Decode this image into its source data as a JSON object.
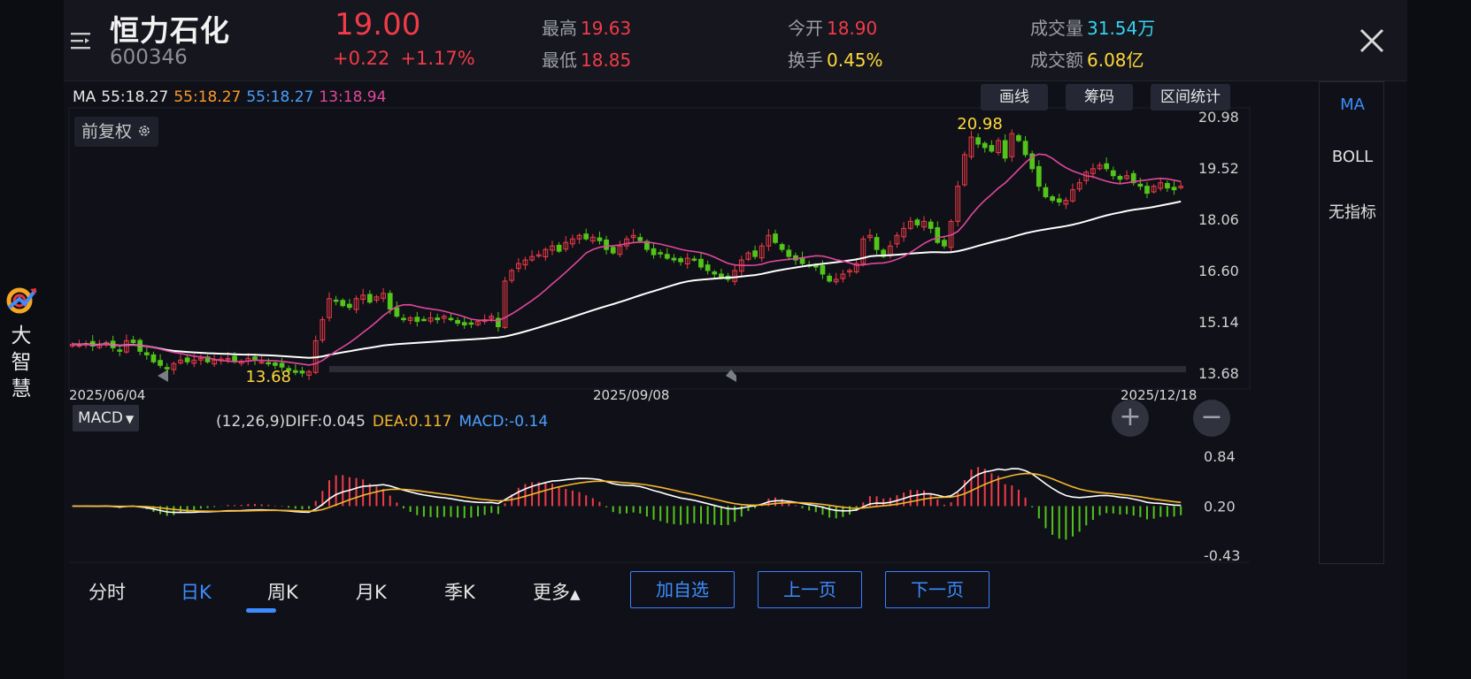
{
  "brand": {
    "text": "大智慧",
    "logo_icon": "dzh-logo-icon"
  },
  "header": {
    "name": "恒力石化",
    "code": "600346",
    "price": "19.00",
    "change": "+0.22",
    "change_pct": "+1.17%",
    "high_label": "最高",
    "high": "19.63",
    "low_label": "最低",
    "low": "18.85",
    "open_label": "今开",
    "open": "18.90",
    "turnover_label": "换手",
    "turnover": "0.45%",
    "volume_label": "成交量",
    "volume": "31.54万",
    "amount_label": "成交额",
    "amount": "6.08亿"
  },
  "ma_legend": {
    "label": "MA",
    "ma1": "55:18.27",
    "ma2": "55:18.27",
    "ma3": "55:18.27",
    "ma4": "13:18.94"
  },
  "tools": {
    "draw": "画线",
    "chips": "筹码",
    "range": "区间统计"
  },
  "fuquan": "前复权",
  "side_indicators": [
    "MA",
    "BOLL",
    "无指标"
  ],
  "macd": {
    "label": "MACD",
    "params": "(12,26,9)",
    "diff": "DIFF:0.045",
    "dea": "DEA:0.117",
    "macd": "MACD:-0.14"
  },
  "zoom": {
    "in": "+",
    "out": "−"
  },
  "tabs": [
    "分时",
    "日K",
    "周K",
    "月K",
    "季K",
    "更多"
  ],
  "actions": {
    "add": "加自选",
    "prev": "上一页",
    "next": "下一页"
  },
  "chart_data": {
    "type": "candlestick",
    "x_labels": [
      "2025/06/04",
      "2025/09/08",
      "2025/12/18"
    ],
    "y_ticks": [
      "20.98",
      "19.52",
      "18.06",
      "16.60",
      "15.14",
      "13.68"
    ],
    "ylim": [
      13.68,
      20.98
    ],
    "max_label": "20.98",
    "min_label": "13.68",
    "macd_ticks": [
      "0.84",
      "0.20",
      "-0.43"
    ],
    "macd_ylim": [
      -0.43,
      0.84
    ],
    "colors": {
      "up": "#f23b48",
      "down": "#52c41a",
      "ma_slow": "#ffffff",
      "ma_fast": "#e0479c",
      "diff": "#ffffff",
      "dea": "#f5b52d"
    },
    "closes": [
      14.5,
      14.48,
      14.52,
      14.45,
      14.5,
      14.55,
      14.4,
      14.3,
      14.6,
      14.55,
      14.3,
      14.2,
      14.0,
      13.9,
      13.8,
      13.95,
      14.05,
      14.0,
      14.05,
      14.1,
      14.0,
      14.05,
      14.08,
      14.1,
      14.0,
      14.02,
      14.1,
      14.05,
      14.0,
      13.95,
      13.9,
      13.85,
      13.75,
      13.7,
      13.68,
      13.72,
      14.6,
      15.2,
      15.8,
      15.75,
      15.6,
      15.55,
      15.8,
      15.9,
      15.7,
      15.85,
      15.95,
      15.5,
      15.3,
      15.2,
      15.25,
      15.15,
      15.2,
      15.25,
      15.2,
      15.3,
      15.2,
      15.1,
      15.05,
      15.1,
      15.15,
      15.2,
      15.3,
      15.0,
      16.3,
      16.6,
      16.8,
      16.9,
      17.0,
      17.05,
      17.2,
      17.3,
      17.15,
      17.4,
      17.5,
      17.6,
      17.5,
      17.55,
      17.45,
      17.2,
      17.1,
      17.3,
      17.5,
      17.6,
      17.45,
      17.2,
      17.05,
      17.1,
      16.95,
      16.9,
      16.85,
      16.95,
      16.9,
      16.7,
      16.6,
      16.5,
      16.4,
      16.35,
      16.6,
      16.9,
      17.1,
      17.0,
      17.3,
      17.6,
      17.4,
      17.2,
      17.0,
      16.9,
      16.8,
      16.75,
      16.7,
      16.5,
      16.3,
      16.35,
      16.5,
      16.6,
      16.8,
      17.5,
      17.6,
      17.2,
      17.0,
      17.3,
      17.6,
      17.8,
      18.0,
      17.9,
      18.0,
      17.8,
      17.4,
      17.3,
      18.0,
      19.0,
      19.9,
      20.4,
      20.2,
      20.1,
      20.0,
      20.3,
      19.8,
      20.5,
      20.3,
      19.9,
      19.5,
      19.0,
      18.7,
      18.6,
      18.55,
      18.6,
      18.9,
      19.1,
      19.4,
      19.5,
      19.6,
      19.5,
      19.3,
      19.2,
      19.3,
      19.1,
      19.0,
      18.8,
      19.0,
      19.1,
      18.95,
      18.9,
      19.0
    ]
  }
}
